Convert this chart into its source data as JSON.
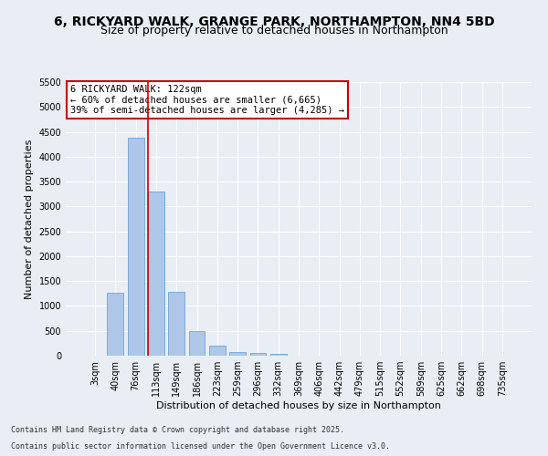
{
  "title_line1": "6, RICKYARD WALK, GRANGE PARK, NORTHAMPTON, NN4 5BD",
  "title_line2": "Size of property relative to detached houses in Northampton",
  "xlabel": "Distribution of detached houses by size in Northampton",
  "ylabel": "Number of detached properties",
  "footer_line1": "Contains HM Land Registry data © Crown copyright and database right 2025.",
  "footer_line2": "Contains public sector information licensed under the Open Government Licence v3.0.",
  "bar_labels": [
    "3sqm",
    "40sqm",
    "76sqm",
    "113sqm",
    "149sqm",
    "186sqm",
    "223sqm",
    "259sqm",
    "296sqm",
    "332sqm",
    "369sqm",
    "406sqm",
    "442sqm",
    "479sqm",
    "515sqm",
    "552sqm",
    "589sqm",
    "625sqm",
    "662sqm",
    "698sqm",
    "735sqm"
  ],
  "bar_values": [
    0,
    1260,
    4380,
    3300,
    1280,
    500,
    210,
    80,
    55,
    30,
    0,
    0,
    0,
    0,
    0,
    0,
    0,
    0,
    0,
    0,
    0
  ],
  "bar_color": "#aec6e8",
  "bar_edgecolor": "#5b9bd5",
  "vline_index": 3,
  "vline_color": "#cc0000",
  "annotation_text": "6 RICKYARD WALK: 122sqm\n← 60% of detached houses are smaller (6,665)\n39% of semi-detached houses are larger (4,285) →",
  "annotation_box_edgecolor": "#cc0000",
  "ylim": [
    0,
    5500
  ],
  "yticks": [
    0,
    500,
    1000,
    1500,
    2000,
    2500,
    3000,
    3500,
    4000,
    4500,
    5000,
    5500
  ],
  "bg_color": "#e8eef4",
  "plot_bg_color": "#e8eef4",
  "grid_color": "#ffffff",
  "title_fontsize": 10,
  "subtitle_fontsize": 9,
  "axis_label_fontsize": 8,
  "tick_fontsize": 7,
  "annotation_fontsize": 7.5,
  "footer_fontsize": 6
}
